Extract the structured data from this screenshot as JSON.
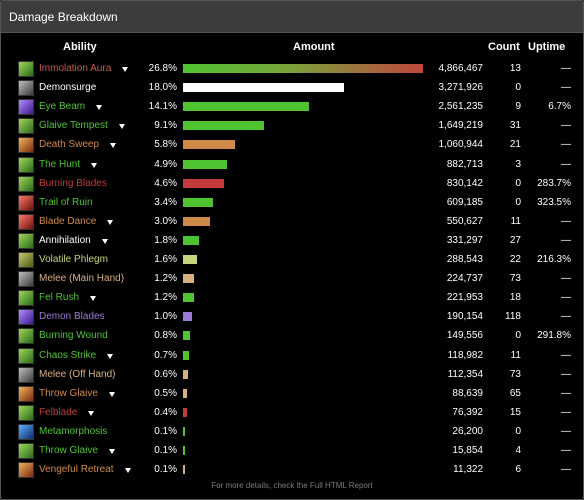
{
  "panel": {
    "title": "Damage Breakdown"
  },
  "columns": {
    "ability": "Ability",
    "amount": "Amount",
    "count": "Count",
    "uptime": "Uptime"
  },
  "colors": {
    "green": "#4fc431",
    "red": "#c43a3a",
    "orange": "#d08a48",
    "white": "#ffffff",
    "purple": "#9a7ad8",
    "tan": "#d8b080",
    "olive": "#c8d27a"
  },
  "rows": [
    {
      "name": "Immolation Aura",
      "color": "#c65a50",
      "dropdown": true,
      "pct": "26.8%",
      "bar": "gradient",
      "amount": "4,866,467",
      "count": "13",
      "uptime": "—",
      "icon": "i-green"
    },
    {
      "name": "Demonsurge",
      "color": "#ffffff",
      "dropdown": false,
      "pct": "18.0%",
      "bar": "white",
      "amount": "3,271,926",
      "count": "0",
      "uptime": "—",
      "icon": "i-gray"
    },
    {
      "name": "Eye Beam",
      "color": "#4fc431",
      "dropdown": true,
      "pct": "14.1%",
      "bar": "green",
      "amount": "2,561,235",
      "count": "9",
      "uptime": "6.7%",
      "icon": "i-purple"
    },
    {
      "name": "Glaive Tempest",
      "color": "#4fc431",
      "dropdown": true,
      "pct": "9.1%",
      "bar": "green",
      "amount": "1,649,219",
      "count": "31",
      "uptime": "—",
      "icon": "i-green"
    },
    {
      "name": "Death Sweep",
      "color": "#d08a48",
      "dropdown": true,
      "pct": "5.8%",
      "bar": "orange",
      "amount": "1,060,944",
      "count": "21",
      "uptime": "—",
      "icon": "i-orange"
    },
    {
      "name": "The Hunt",
      "color": "#4fc431",
      "dropdown": true,
      "pct": "4.9%",
      "bar": "green",
      "amount": "882,713",
      "count": "3",
      "uptime": "—",
      "icon": "i-green"
    },
    {
      "name": "Burning Blades",
      "color": "#c43a3a",
      "dropdown": false,
      "pct": "4.6%",
      "bar": "red",
      "amount": "830,142",
      "count": "0",
      "uptime": "283.7%",
      "icon": "i-green"
    },
    {
      "name": "Trail of Ruin",
      "color": "#4fc431",
      "dropdown": false,
      "pct": "3.4%",
      "bar": "green",
      "amount": "609,185",
      "count": "0",
      "uptime": "323.5%",
      "icon": "i-red"
    },
    {
      "name": "Blade Dance",
      "color": "#d08a48",
      "dropdown": true,
      "pct": "3.0%",
      "bar": "orange",
      "amount": "550,627",
      "count": "11",
      "uptime": "—",
      "icon": "i-red"
    },
    {
      "name": "Annihilation",
      "color": "#ffffff",
      "dropdown": true,
      "pct": "1.8%",
      "bar": "green",
      "amount": "331,297",
      "count": "27",
      "uptime": "—",
      "icon": "i-green"
    },
    {
      "name": "Volatile Phlegm",
      "color": "#c8d27a",
      "dropdown": false,
      "pct": "1.6%",
      "bar": "olive",
      "amount": "288,543",
      "count": "22",
      "uptime": "216.3%",
      "icon": "i-olive"
    },
    {
      "name": "Melee (Main Hand)",
      "color": "#d8b080",
      "dropdown": false,
      "pct": "1.2%",
      "bar": "tan",
      "amount": "224,737",
      "count": "73",
      "uptime": "—",
      "icon": "i-gray"
    },
    {
      "name": "Fel Rush",
      "color": "#4fc431",
      "dropdown": true,
      "pct": "1.2%",
      "bar": "green",
      "amount": "221,953",
      "count": "18",
      "uptime": "—",
      "icon": "i-green"
    },
    {
      "name": "Demon Blades",
      "color": "#9a7ad8",
      "dropdown": false,
      "pct": "1.0%",
      "bar": "purple",
      "amount": "190,154",
      "count": "118",
      "uptime": "—",
      "icon": "i-purple"
    },
    {
      "name": "Burning Wound",
      "color": "#4fc431",
      "dropdown": false,
      "pct": "0.8%",
      "bar": "green",
      "amount": "149,556",
      "count": "0",
      "uptime": "291.8%",
      "icon": "i-green"
    },
    {
      "name": "Chaos Strike",
      "color": "#4fc431",
      "dropdown": true,
      "pct": "0.7%",
      "bar": "green",
      "amount": "118,982",
      "count": "11",
      "uptime": "—",
      "icon": "i-green"
    },
    {
      "name": "Melee (Off Hand)",
      "color": "#d8b080",
      "dropdown": false,
      "pct": "0.6%",
      "bar": "tan",
      "amount": "112,354",
      "count": "73",
      "uptime": "—",
      "icon": "i-gray"
    },
    {
      "name": "Throw Glaive",
      "color": "#d08a48",
      "dropdown": true,
      "pct": "0.5%",
      "bar": "tan",
      "amount": "88,639",
      "count": "65",
      "uptime": "—",
      "icon": "i-orange"
    },
    {
      "name": "Felblade",
      "color": "#c43a3a",
      "dropdown": true,
      "pct": "0.4%",
      "bar": "red",
      "amount": "76,392",
      "count": "15",
      "uptime": "—",
      "icon": "i-green"
    },
    {
      "name": "Metamorphosis",
      "color": "#4fc431",
      "dropdown": false,
      "pct": "0.1%",
      "bar": "green",
      "amount": "26,200",
      "count": "0",
      "uptime": "—",
      "icon": "i-blue"
    },
    {
      "name": "Throw Glaive",
      "color": "#4fc431",
      "dropdown": true,
      "pct": "0.1%",
      "bar": "green",
      "amount": "15,854",
      "count": "4",
      "uptime": "—",
      "icon": "i-green"
    },
    {
      "name": "Vengeful Retreat",
      "color": "#d08a48",
      "dropdown": true,
      "pct": "0.1%",
      "bar": "tan",
      "amount": "11,322",
      "count": "6",
      "uptime": "—",
      "icon": "i-orange"
    }
  ],
  "footer": "For more details, check the Full HTML Report"
}
